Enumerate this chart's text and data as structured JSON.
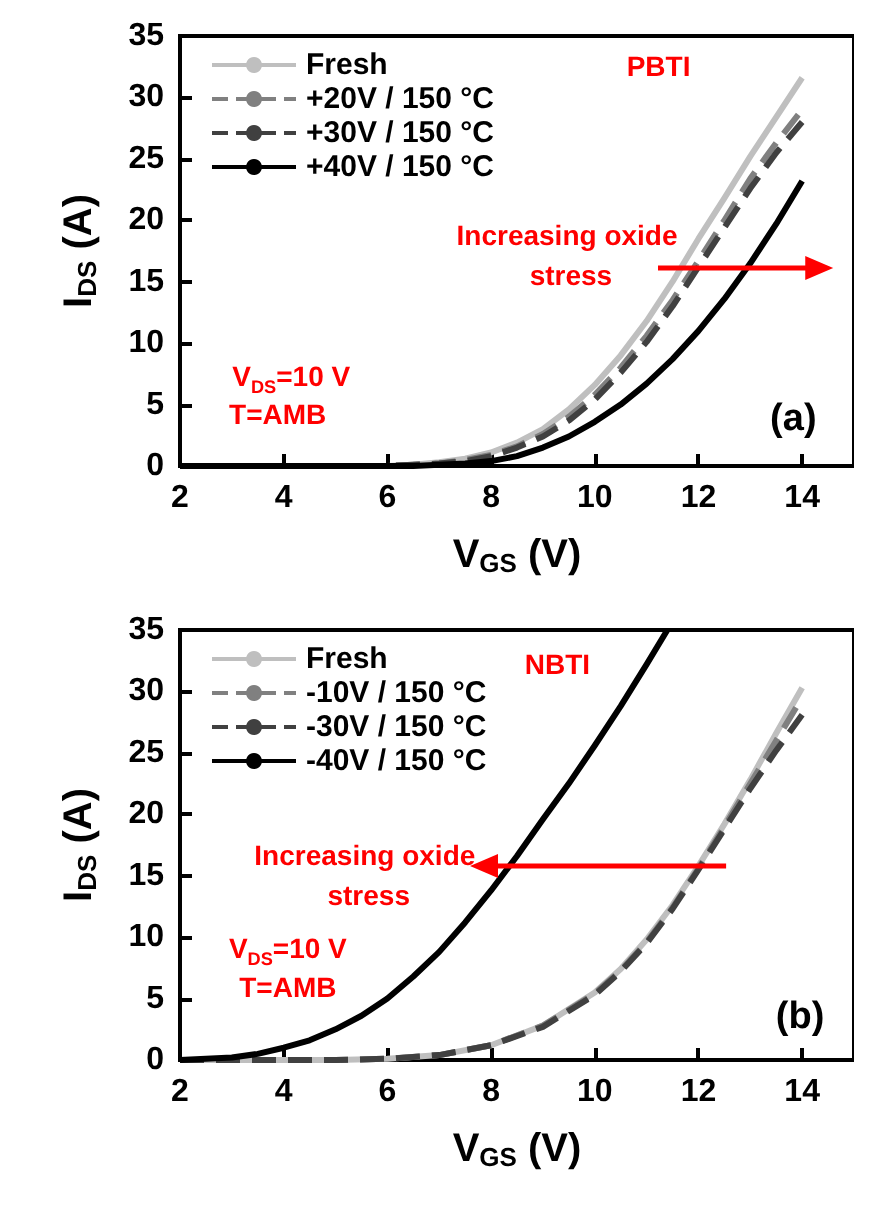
{
  "chart_data": [
    {
      "type": "line",
      "xlabel": "V$_{GS}$ (V)",
      "ylabel": "I$_{DS}$ (A)",
      "xlim": [
        2,
        15
      ],
      "ylim": [
        0,
        35
      ],
      "xticks": [
        2,
        4,
        6,
        8,
        10,
        12,
        14
      ],
      "yticks": [
        0,
        5,
        10,
        15,
        20,
        25,
        30,
        35
      ],
      "grid": false,
      "legend": "top left",
      "marker": "none",
      "x": [
        2,
        4,
        6,
        6.5,
        7,
        7.5,
        8,
        8.5,
        9,
        9.5,
        10,
        10.5,
        11,
        11.5,
        12,
        12.5,
        13,
        13.5,
        14
      ],
      "series": [
        {
          "name": "Fresh",
          "color": "#bfbfbf",
          "line_style": "solid",
          "values": [
            0,
            0,
            0,
            0.1,
            0.3,
            0.6,
            1.1,
            1.9,
            3,
            4.6,
            6.6,
            9,
            11.8,
            15,
            18.5,
            21.8,
            25.2,
            28.4,
            31.6
          ]
        },
        {
          "name": "+20V / 150 °C",
          "color": "#808080",
          "line_style": "dashed",
          "values": [
            0,
            0,
            0,
            0.1,
            0.2,
            0.5,
            0.9,
            1.6,
            2.6,
            4,
            5.8,
            8,
            10.6,
            13.5,
            16.7,
            20,
            23.4,
            26.3,
            29
          ]
        },
        {
          "name": "+30V / 150 °C",
          "color": "#404040",
          "line_style": "dashed",
          "values": [
            0,
            0,
            0,
            0.1,
            0.2,
            0.4,
            0.8,
            1.5,
            2.4,
            3.7,
            5.4,
            7.6,
            10.1,
            13,
            16.2,
            19.4,
            22.6,
            25.5,
            28
          ]
        },
        {
          "name": "+40V / 150 °C",
          "color": "#000000",
          "line_style": "solid",
          "values": [
            0,
            0,
            0,
            0,
            0.1,
            0.2,
            0.4,
            0.8,
            1.5,
            2.4,
            3.6,
            5,
            6.7,
            8.7,
            11,
            13.6,
            16.5,
            19.7,
            23.2
          ]
        }
      ],
      "annotations": [
        "PBTI",
        "Increasing oxide stress",
        "V$_{DS}$=10 V",
        "T=AMB",
        "(a)"
      ]
    },
    {
      "type": "line",
      "xlabel": "V$_{GS}$ (V)",
      "ylabel": "I$_{DS}$ (A)",
      "xlim": [
        2,
        15
      ],
      "ylim": [
        0,
        35
      ],
      "xticks": [
        2,
        4,
        6,
        8,
        10,
        12,
        14
      ],
      "yticks": [
        0,
        5,
        10,
        15,
        20,
        25,
        30,
        35
      ],
      "grid": false,
      "legend": "top left",
      "marker": "none",
      "series": [
        {
          "name": "Fresh",
          "color": "#bfbfbf",
          "line_style": "solid",
          "x": [
            2,
            4,
            5,
            6,
            7,
            8,
            9,
            10,
            10.5,
            11,
            11.5,
            12,
            12.5,
            13,
            13.5,
            14
          ],
          "values": [
            0,
            0,
            0,
            0.1,
            0.4,
            1.2,
            2.8,
            5.5,
            7.4,
            9.8,
            12.6,
            15.8,
            19.2,
            22.8,
            26.6,
            30.3
          ]
        },
        {
          "name": "-10V / 150 °C",
          "color": "#808080",
          "line_style": "dashed",
          "x": [
            2,
            4,
            5,
            6,
            7,
            8,
            9,
            10,
            10.5,
            11,
            11.5,
            12,
            12.5,
            13,
            13.5,
            14
          ],
          "values": [
            0,
            0,
            0,
            0.1,
            0.4,
            1.2,
            2.8,
            5.4,
            7.3,
            9.6,
            12.4,
            15.6,
            19,
            22.5,
            26,
            29.5
          ]
        },
        {
          "name": "-30V / 150 °C",
          "color": "#404040",
          "line_style": "dashed",
          "x": [
            2,
            4,
            5,
            6,
            7,
            8,
            9,
            10,
            10.5,
            11,
            11.5,
            12,
            12.5,
            13,
            13.5,
            14
          ],
          "values": [
            0,
            0,
            0,
            0.1,
            0.4,
            1.2,
            2.7,
            5.3,
            7.2,
            9.5,
            12.3,
            15.5,
            18.8,
            22.1,
            25.2,
            28.1
          ]
        },
        {
          "name": "-40V / 150 °C",
          "color": "#000000",
          "line_style": "solid",
          "x": [
            2,
            3,
            3.5,
            4,
            4.5,
            5,
            5.5,
            6,
            6.5,
            7,
            7.5,
            8,
            8.5,
            9,
            9.5,
            10,
            10.5,
            11,
            11.4
          ],
          "values": [
            0,
            0.2,
            0.5,
            1,
            1.6,
            2.5,
            3.6,
            5,
            6.8,
            8.8,
            11.2,
            13.8,
            16.6,
            19.6,
            22.5,
            25.6,
            28.8,
            32.2,
            35
          ]
        }
      ],
      "annotations": [
        "NBTI",
        "Increasing oxide stress",
        "V$_{DS}$=10 V",
        "T=AMB",
        "(b)"
      ]
    }
  ]
}
